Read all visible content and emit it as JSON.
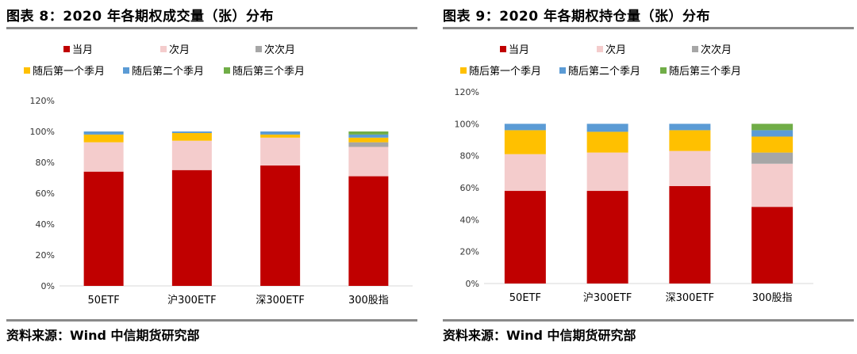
{
  "colors": {
    "当月": "#c00000",
    "次月": "#f4cccc",
    "次次月": "#a6a6a6",
    "随后第一个季月": "#ffc000",
    "随后第二个季月": "#5b9bd5",
    "随后第三个季月": "#70ad47"
  },
  "source_label": "资料来源：Wind 中信期货研究部",
  "chart_data": [
    {
      "type": "bar",
      "stacked": true,
      "title": "图表 8：2020 年各期权成交量（张）分布",
      "categories": [
        "50ETF",
        "沪300ETF",
        "深300ETF",
        "300股指"
      ],
      "yticks": [
        "0%",
        "20%",
        "40%",
        "60%",
        "80%",
        "100%",
        "120%"
      ],
      "ylim": [
        0,
        120
      ],
      "legend_position": "top-left",
      "series": [
        {
          "name": "当月",
          "values": [
            74,
            75,
            78,
            71
          ]
        },
        {
          "name": "次月",
          "values": [
            19,
            19,
            18,
            19
          ]
        },
        {
          "name": "次次月",
          "values": [
            0,
            0,
            0,
            3
          ]
        },
        {
          "name": "随后第一个季月",
          "values": [
            5,
            5,
            2,
            3
          ]
        },
        {
          "name": "随后第二个季月",
          "values": [
            2,
            1,
            2,
            2
          ]
        },
        {
          "name": "随后第三个季月",
          "values": [
            0,
            0,
            0,
            2
          ]
        }
      ]
    },
    {
      "type": "bar",
      "stacked": true,
      "title": "图表 9：2020 年各期权持仓量（张）分布",
      "categories": [
        "50ETF",
        "沪300ETF",
        "深300ETF",
        "300股指"
      ],
      "yticks": [
        "0%",
        "20%",
        "40%",
        "60%",
        "80%",
        "100%",
        "120%"
      ],
      "ylim": [
        0,
        120
      ],
      "legend_position": "top-left",
      "series": [
        {
          "name": "当月",
          "values": [
            58,
            58,
            61,
            48
          ]
        },
        {
          "name": "次月",
          "values": [
            23,
            24,
            22,
            27
          ]
        },
        {
          "name": "次次月",
          "values": [
            0,
            0,
            0,
            7
          ]
        },
        {
          "name": "随后第一个季月",
          "values": [
            15,
            13,
            13,
            10
          ]
        },
        {
          "name": "随后第二个季月",
          "values": [
            4,
            5,
            4,
            4
          ]
        },
        {
          "name": "随后第三个季月",
          "values": [
            0,
            0,
            0,
            4
          ]
        }
      ]
    }
  ]
}
